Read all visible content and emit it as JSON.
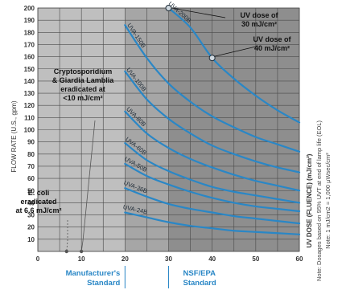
{
  "chart_data": {
    "type": "line",
    "xlim": [
      0,
      60
    ],
    "ylim": [
      0,
      200
    ],
    "x_ticks": [
      0,
      10,
      20,
      30,
      40,
      50,
      60
    ],
    "y_ticks": [
      10,
      20,
      30,
      40,
      50,
      60,
      70,
      80,
      90,
      100,
      110,
      120,
      130,
      140,
      150,
      160,
      170,
      180,
      190,
      200
    ],
    "ylabel": "FLOW RATE (U.S., gpm)",
    "right_axis_title": "UV DOSE (FLUENCE) (mJ/cm²)",
    "right_notes": [
      "Note: Dosages based on 95% UVT at end of lamp life (EOL)",
      "Note: 1 mJ/cm2 = 1,000 μWsec/cm²"
    ],
    "grid": true,
    "shading": [
      {
        "from": 20,
        "to": 30,
        "color": "#a6a6a6"
      },
      {
        "from": 30,
        "to": 60,
        "color": "#8e8e8e"
      }
    ],
    "series": [
      {
        "name": "UVA-200B",
        "color": "#2a87c6",
        "points": [
          [
            30,
            200
          ],
          [
            35,
            184
          ],
          [
            40,
            159
          ],
          [
            45,
            142
          ],
          [
            50,
            128
          ],
          [
            55,
            116
          ],
          [
            60,
            106
          ]
        ]
      },
      {
        "name": "UVA-150B",
        "color": "#2a87c6",
        "points": [
          [
            20,
            186
          ],
          [
            25,
            159
          ],
          [
            30,
            138
          ],
          [
            35,
            123
          ],
          [
            40,
            111
          ],
          [
            45,
            102
          ],
          [
            50,
            94
          ],
          [
            55,
            88
          ],
          [
            60,
            82
          ]
        ]
      },
      {
        "name": "UVA-100B",
        "color": "#2a87c6",
        "points": [
          [
            20,
            148
          ],
          [
            25,
            125
          ],
          [
            30,
            109
          ],
          [
            35,
            97
          ],
          [
            40,
            87
          ],
          [
            45,
            80
          ],
          [
            50,
            74
          ],
          [
            55,
            69
          ],
          [
            60,
            65
          ]
        ]
      },
      {
        "name": "UVA-80B",
        "color": "#2a87c6",
        "points": [
          [
            20,
            115
          ],
          [
            25,
            97
          ],
          [
            30,
            85
          ],
          [
            35,
            76
          ],
          [
            40,
            69
          ],
          [
            45,
            63
          ],
          [
            50,
            58
          ],
          [
            55,
            54
          ],
          [
            60,
            50
          ]
        ]
      },
      {
        "name": "UVA-60B",
        "color": "#2a87c6",
        "points": [
          [
            20,
            89
          ],
          [
            25,
            75
          ],
          [
            30,
            66
          ],
          [
            35,
            59
          ],
          [
            40,
            53
          ],
          [
            45,
            49
          ],
          [
            50,
            46
          ],
          [
            55,
            43
          ],
          [
            60,
            40
          ]
        ]
      },
      {
        "name": "UVA-50B",
        "color": "#2a87c6",
        "points": [
          [
            20,
            72
          ],
          [
            25,
            62
          ],
          [
            30,
            55
          ],
          [
            35,
            49
          ],
          [
            40,
            44
          ],
          [
            45,
            40
          ],
          [
            50,
            37
          ],
          [
            55,
            35
          ],
          [
            60,
            33
          ]
        ]
      },
      {
        "name": "UVA-36B",
        "color": "#2a87c6",
        "points": [
          [
            20,
            52
          ],
          [
            25,
            45
          ],
          [
            30,
            39
          ],
          [
            35,
            35
          ],
          [
            40,
            32
          ],
          [
            45,
            29
          ],
          [
            50,
            27
          ],
          [
            55,
            25
          ],
          [
            60,
            23
          ]
        ]
      },
      {
        "name": "UVA-24B",
        "color": "#2a87c6",
        "points": [
          [
            20,
            32
          ],
          [
            25,
            28
          ],
          [
            30,
            24
          ],
          [
            35,
            21
          ],
          [
            40,
            19
          ],
          [
            45,
            17
          ],
          [
            50,
            16
          ],
          [
            55,
            15
          ],
          [
            60,
            14
          ]
        ]
      }
    ],
    "markers": [
      {
        "x": 30,
        "y": 200
      },
      {
        "x": 40,
        "y": 159
      }
    ],
    "annotations": [
      {
        "lines": [
          "UV dose of",
          "30 mJ/cm²"
        ],
        "x": 30,
        "y": 200
      },
      {
        "lines": [
          "UV dose of",
          "40 mJ/cm²"
        ],
        "x": 40,
        "y": 159
      },
      {
        "lines": [
          "Cryptosporidium",
          "& Giardia Lamblia",
          "eradicated at",
          "<10 mJ/cm²"
        ],
        "x": 10,
        "y": 0
      },
      {
        "lines": [
          "E. coli",
          "eradicated",
          "at 6.6 mJ/cm²"
        ],
        "x": 6.6,
        "y": 0
      }
    ],
    "bottom_labels": [
      {
        "lines": [
          "Manufacturer's",
          "Standard"
        ]
      },
      {
        "lines": [
          "NSF/EPA",
          "Standard"
        ]
      }
    ]
  }
}
